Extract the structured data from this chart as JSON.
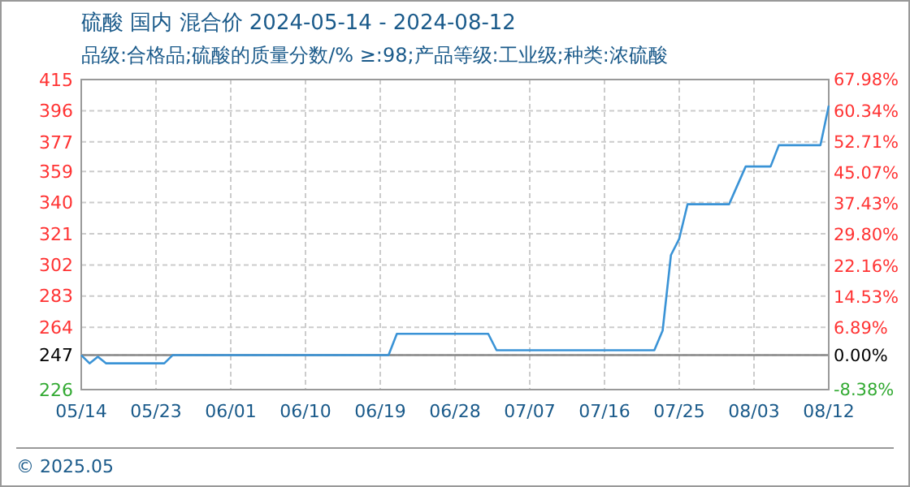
{
  "chart_data": {
    "type": "line",
    "title": "硫酸 国内 混合价 2024-05-14 - 2024-08-12",
    "subtitle": "品级:合格品;硫酸的质量分数/%  ≥:98;产品等级:工业级;种类:浓硫酸",
    "x": [
      "2024-05-14",
      "2024-05-15",
      "2024-05-16",
      "2024-05-17",
      "2024-05-24",
      "2024-05-25",
      "2024-06-20",
      "2024-06-21",
      "2024-07-02",
      "2024-07-03",
      "2024-07-22",
      "2024-07-23",
      "2024-07-24",
      "2024-07-25",
      "2024-07-26",
      "2024-07-31",
      "2024-08-02",
      "2024-08-05",
      "2024-08-06",
      "2024-08-11",
      "2024-08-12"
    ],
    "series": [
      {
        "color": "#3a93d6",
        "values": [
          247,
          242,
          246,
          242,
          242,
          247,
          247,
          260,
          260,
          250,
          250,
          262,
          308,
          318,
          339,
          339,
          362,
          362,
          375,
          375,
          399
        ]
      }
    ],
    "xlim": [
      "2024-05-14",
      "2024-08-12"
    ],
    "xticks": [
      {
        "value": "2024-05-14",
        "label": "05/14"
      },
      {
        "value": "2024-05-23",
        "label": "05/23"
      },
      {
        "value": "2024-06-01",
        "label": "06/01"
      },
      {
        "value": "2024-06-10",
        "label": "06/10"
      },
      {
        "value": "2024-06-19",
        "label": "06/19"
      },
      {
        "value": "2024-06-28",
        "label": "06/28"
      },
      {
        "value": "2024-07-07",
        "label": "07/07"
      },
      {
        "value": "2024-07-16",
        "label": "07/16"
      },
      {
        "value": "2024-07-25",
        "label": "07/25"
      },
      {
        "value": "2024-08-03",
        "label": "08/03"
      },
      {
        "value": "2024-08-12",
        "label": "08/12"
      }
    ],
    "ylim": [
      226,
      415
    ],
    "yticks": [
      226,
      247,
      264,
      283,
      302,
      321,
      340,
      359,
      377,
      396,
      415
    ],
    "y2lim": [
      -8.38,
      67.98
    ],
    "y2ticks": [
      {
        "value": -8.38,
        "label": "-8.38%"
      },
      {
        "value": 0,
        "label": "0.00%"
      },
      {
        "value": 6.89,
        "label": "6.89%"
      },
      {
        "value": 14.53,
        "label": "14.53%"
      },
      {
        "value": 22.16,
        "label": "22.16%"
      },
      {
        "value": 29.8,
        "label": "29.80%"
      },
      {
        "value": 37.43,
        "label": "37.43%"
      },
      {
        "value": 45.07,
        "label": "45.07%"
      },
      {
        "value": 52.71,
        "label": "52.71%"
      },
      {
        "value": 60.34,
        "label": "60.34%"
      },
      {
        "value": 67.98,
        "label": "67.98%"
      }
    ],
    "ref_lines": [
      {
        "axis": "y",
        "value": 247,
        "color": "#888888"
      }
    ],
    "grid": true,
    "marker": "none",
    "line_style": "solid",
    "annotations": [
      "© 2025.05"
    ]
  }
}
